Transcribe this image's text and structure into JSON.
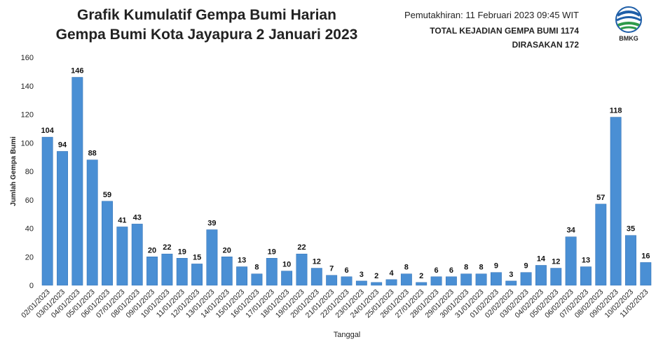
{
  "header": {
    "title_line1": "Grafik Kumulatif Gempa Bumi Harian",
    "title_line2": "Gempa Bumi Kota Jayapura 2 Januari 2023",
    "update": "Pemutakhiran: 11 Februari 2023 09:45 WIT",
    "total": "TOTAL KEJADIAN GEMPA BUMI 1174",
    "felt": "DIRASAKAN 172",
    "logo_text": "BMKG"
  },
  "colors": {
    "bar": "#4a8fd4",
    "bar_dark": "#2f6fb4",
    "grid": "#e6e6e6",
    "text": "#222222"
  },
  "chart_data": {
    "type": "bar",
    "title": "Grafik Kumulatif Gempa Bumi Harian",
    "subtitle": "Gempa Bumi Kota Jayapura 2 Januari 2023",
    "xlabel": "Tanggal",
    "ylabel": "Jumlah Gempa Bumi",
    "ylim": [
      0,
      160
    ],
    "yticks": [
      0,
      20,
      40,
      60,
      80,
      100,
      120,
      140,
      160
    ],
    "grid": false,
    "categories": [
      "02/01/2023",
      "03/01/2023",
      "04/01/2023",
      "05/01/2023",
      "06/01/2023",
      "07/01/2023",
      "08/01/2023",
      "09/01/2023",
      "10/01/2023",
      "11/01/2023",
      "12/01/2023",
      "13/01/2023",
      "14/01/2023",
      "15/01/2023",
      "16/01/2023",
      "17/01/2023",
      "18/01/2023",
      "19/01/2023",
      "20/01/2023",
      "21/01/2023",
      "22/01/2023",
      "23/01/2023",
      "24/01/2023",
      "25/01/2023",
      "26/01/2023",
      "27/01/2023",
      "28/01/2023",
      "29/01/2023",
      "30/01/2023",
      "31/01/2023",
      "01/02/2023",
      "02/02/2023",
      "03/02/2023",
      "04/02/2023",
      "05/02/2023",
      "06/02/2023",
      "07/02/2023",
      "08/02/2023",
      "09/02/2023",
      "10/02/2023",
      "11/02/2023"
    ],
    "values": [
      104,
      94,
      146,
      88,
      59,
      41,
      43,
      20,
      22,
      19,
      15,
      39,
      20,
      13,
      8,
      19,
      10,
      22,
      12,
      7,
      6,
      3,
      2,
      4,
      8,
      2,
      6,
      6,
      8,
      8,
      9,
      3,
      9,
      14,
      12,
      34,
      13,
      57,
      118,
      35,
      16
    ]
  }
}
